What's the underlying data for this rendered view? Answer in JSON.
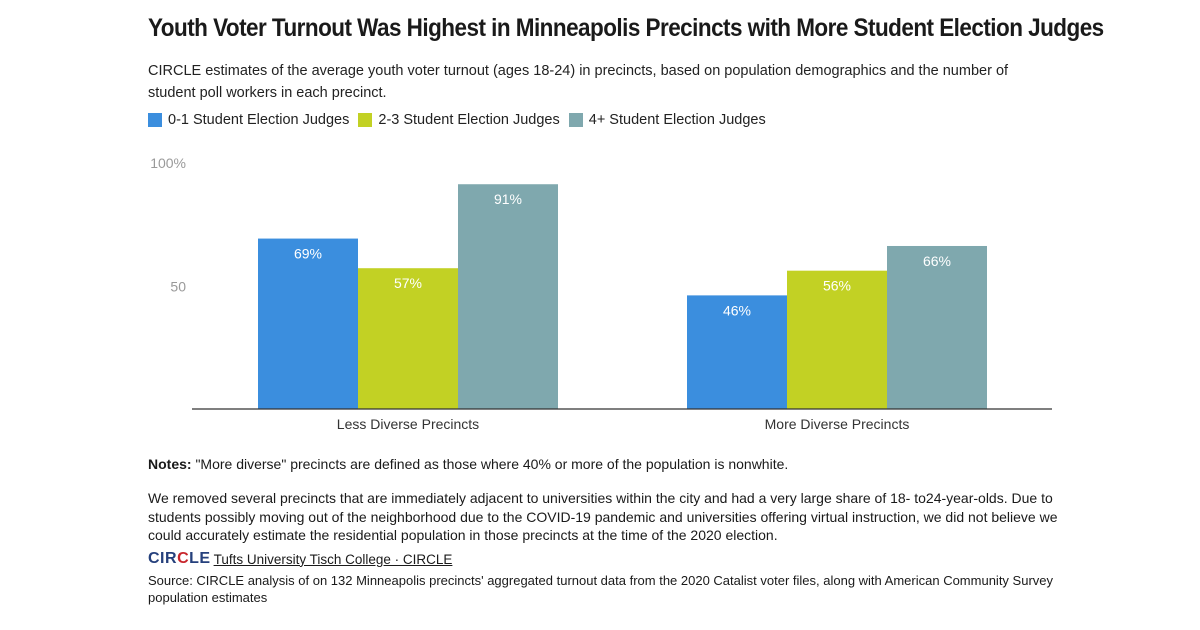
{
  "title": "Youth Voter Turnout Was Highest in Minneapolis Precincts with More Student Election Judges",
  "subtitle": "CIRCLE estimates of the average youth voter turnout (ages 18-24) in precincts, based on population demographics and the number of student poll workers in each precinct.",
  "chart_data": {
    "type": "bar",
    "categories": [
      "Less Diverse Precincts",
      "More Diverse Precincts"
    ],
    "series": [
      {
        "name": "0-1 Student Election Judges",
        "values": [
          69,
          46
        ],
        "labels": [
          "69%",
          "46%"
        ],
        "color": "#3b8ede"
      },
      {
        "name": "2-3 Student Election Judges",
        "values": [
          57,
          56
        ],
        "labels": [
          "57%",
          "56%"
        ],
        "color": "#c2d124"
      },
      {
        "name": "4+ Student Election Judges",
        "values": [
          91,
          66
        ],
        "labels": [
          "91%",
          "66%"
        ],
        "color": "#7fa8ae"
      }
    ],
    "yticks": [
      {
        "value": 50,
        "label": "50"
      },
      {
        "value": 100,
        "label": "100%"
      }
    ],
    "ylim": [
      0,
      100
    ],
    "legend_position": "top-left",
    "grid": false
  },
  "notes": {
    "label": "Notes:",
    "text": " \"More diverse\" precincts are defined as those where 40% or more of the population is nonwhite."
  },
  "paragraph": "We removed several precincts that are immediately adjacent to universities within the city and had a very large share of 18- to24-year-olds. Due to students possibly moving out of the neighborhood due to the COVID-19 pandemic and universities offering virtual instruction, we did not believe we could accurately estimate the residential population in those precincts at the time of the 2020 election.",
  "brand": {
    "logo_left": "CIR",
    "logo_mid": "C",
    "logo_right": "LE",
    "link": "Tufts University Tisch College · CIRCLE"
  },
  "source": "Source: CIRCLE analysis of on 132 Minneapolis precincts' aggregated turnout data from the 2020 Catalist voter files, along with American Community Survey population estimates"
}
